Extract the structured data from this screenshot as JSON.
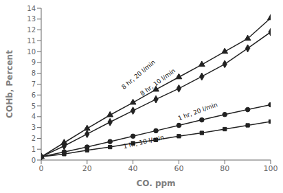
{
  "chart_data": {
    "type": "line",
    "title": "",
    "xlabel": "CO. ppm",
    "ylabel": "COHb, Percent",
    "xlim": [
      0,
      100
    ],
    "ylim": [
      0,
      14
    ],
    "xticks": [
      0,
      20,
      40,
      60,
      80,
      100
    ],
    "yticks": [
      0,
      1,
      2,
      3,
      4,
      5,
      6,
      7,
      8,
      9,
      10,
      11,
      12,
      13,
      14
    ],
    "grid": false,
    "x": [
      0,
      10,
      20,
      30,
      40,
      50,
      60,
      70,
      80,
      90,
      100
    ],
    "series": [
      {
        "color": "#222222",
        "marker": "triangle",
        "values": [
          0.3,
          1.6,
          2.9,
          4.15,
          5.3,
          6.5,
          7.65,
          8.8,
          10.0,
          11.2,
          13.1
        ]
      },
      {
        "color": "#222222",
        "marker": "diamond",
        "values": [
          0.3,
          1.3,
          2.4,
          3.5,
          4.55,
          5.6,
          6.6,
          7.7,
          8.85,
          10.3,
          11.8
        ]
      },
      {
        "color": "#222222",
        "marker": "circle",
        "values": [
          0.3,
          0.75,
          1.2,
          1.7,
          2.2,
          2.7,
          3.2,
          3.7,
          4.2,
          4.65,
          5.1
        ]
      },
      {
        "color": "#222222",
        "marker": "square",
        "values": [
          0.3,
          0.55,
          0.9,
          1.2,
          1.55,
          1.85,
          2.2,
          2.5,
          2.85,
          3.2,
          3.55
        ]
      }
    ],
    "annotations": [
      {
        "text": "8 hr, 20 l/min",
        "x": 36,
        "y": 6.5
      },
      {
        "text": "8 hr, 10 l/min",
        "x": 44,
        "y": 5.9
      },
      {
        "text": "1 hr, 20 l/min",
        "x": 60,
        "y": 3.65
      },
      {
        "text": "1 hr, 10 l/min",
        "x": 36,
        "y": 1.05
      }
    ]
  }
}
